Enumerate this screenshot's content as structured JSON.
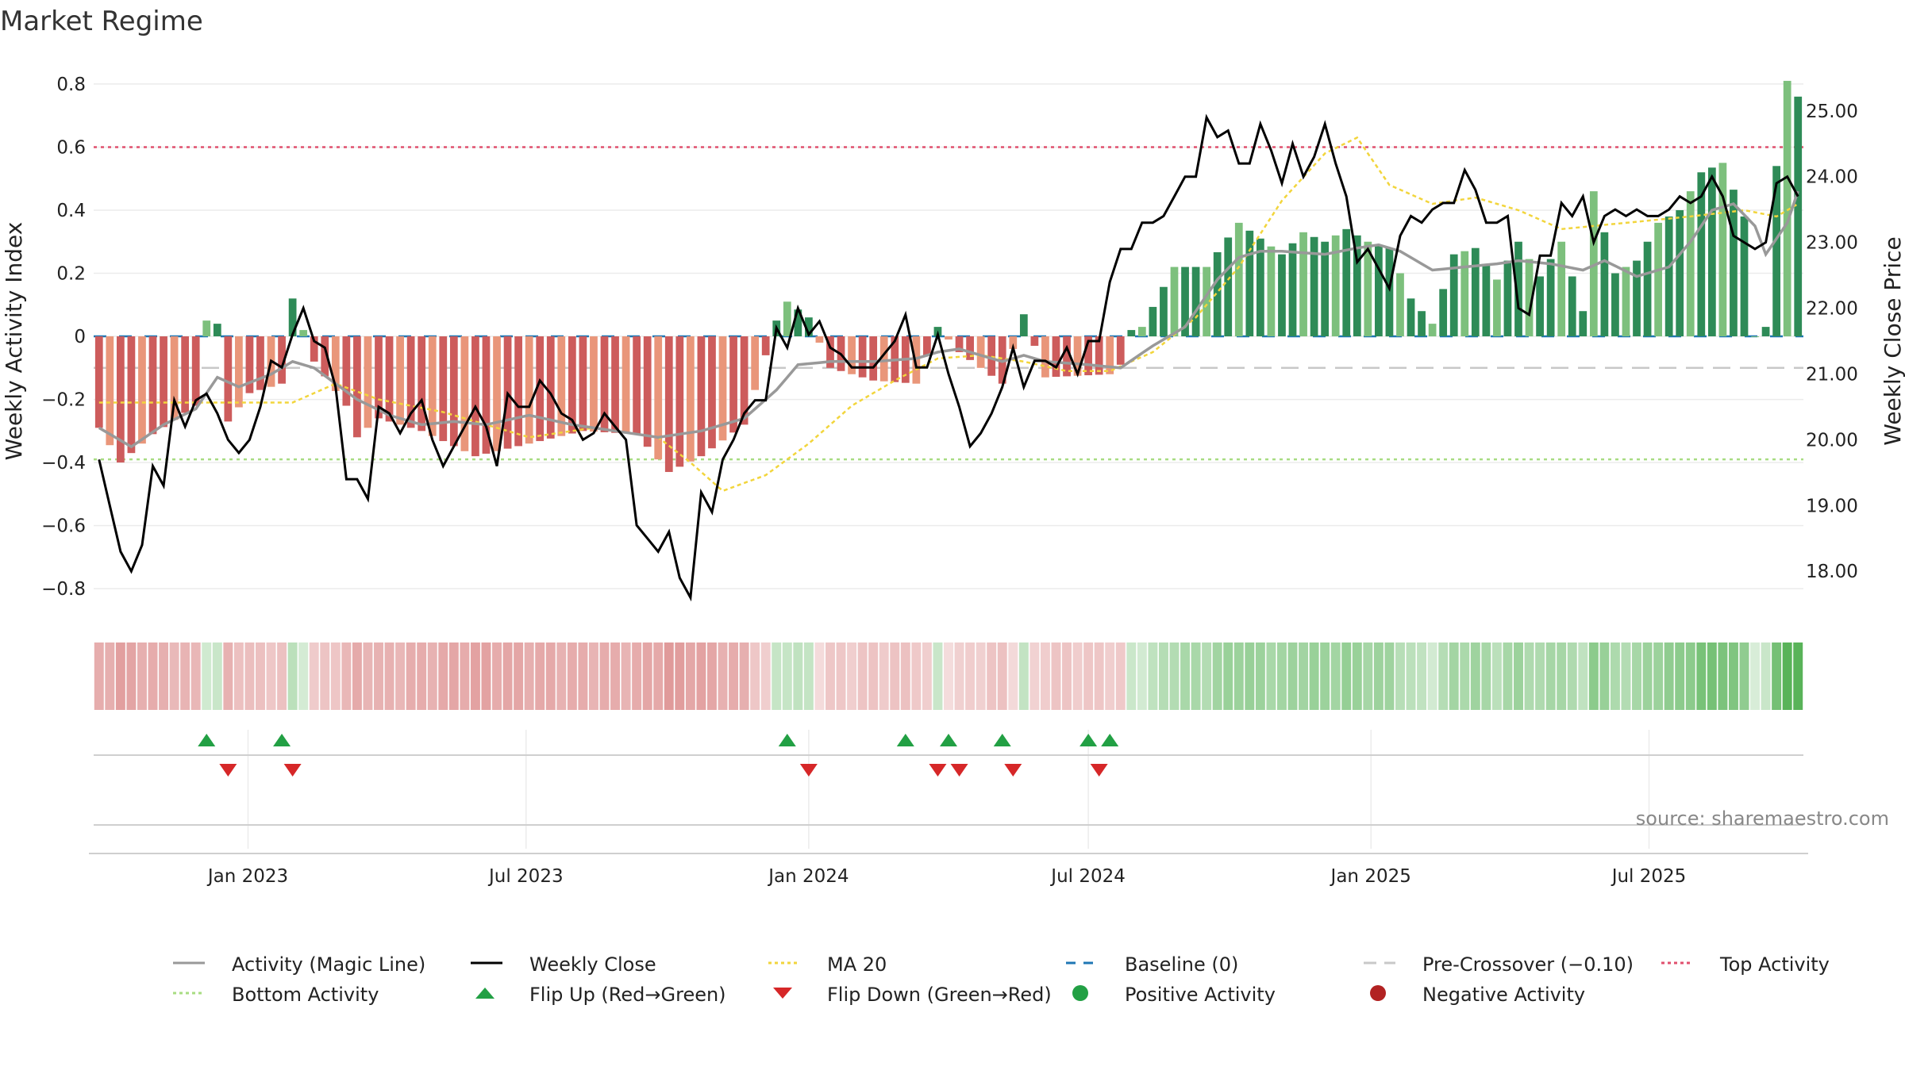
{
  "chart_data": {
    "type": "bar",
    "title": "Market Regime",
    "ylabel_left": "Weekly Activity Index",
    "ylabel_right": "Weekly Close Price",
    "source": "source: sharemaestro.com",
    "x_start_date": "2022-09-26",
    "weeks": 159,
    "date_tick_labels": [
      "Jan 2023",
      "Jul 2023",
      "Jan 2024",
      "Jul 2024",
      "Jan 2025",
      "Jul 2025"
    ],
    "date_tick_dates": [
      "2023-01-01",
      "2023-07-01",
      "2024-01-01",
      "2024-07-01",
      "2025-01-01",
      "2025-07-01"
    ],
    "ylim_left": [
      -0.87,
      0.84
    ],
    "yticks_left": [
      0.8,
      0.6,
      0.4,
      0.2,
      0,
      -0.2,
      -0.4,
      -0.6,
      -0.8
    ],
    "ytick_labels_left": [
      "0.8",
      "0.6",
      "0.4",
      "0.2",
      "0",
      "−0.2",
      "−0.4",
      "−0.6",
      "−0.8"
    ],
    "ylim_right": [
      17.4,
      25.6
    ],
    "yticks_right": [
      25,
      24,
      23,
      22,
      21,
      20,
      19,
      18
    ],
    "ytick_labels_right": [
      "25.00",
      "24.00",
      "23.00",
      "22.00",
      "21.00",
      "20.00",
      "19.00",
      "18.00"
    ],
    "reference_lines": {
      "top": 0.6,
      "bottom": -0.39,
      "pre_crossover": -0.1,
      "baseline": 0
    },
    "bar_anchor_points": [
      [
        0,
        -0.29
      ],
      [
        2,
        -0.4
      ],
      [
        5,
        -0.31
      ],
      [
        9,
        -0.22
      ],
      [
        10,
        0.05
      ],
      [
        11,
        0.04
      ],
      [
        12,
        -0.27
      ],
      [
        14,
        -0.18
      ],
      [
        17,
        -0.15
      ],
      [
        18,
        0.12
      ],
      [
        20,
        -0.08
      ],
      [
        23,
        -0.22
      ],
      [
        24,
        -0.32
      ],
      [
        26,
        -0.26
      ],
      [
        30,
        -0.3
      ],
      [
        35,
        -0.38
      ],
      [
        40,
        -0.34
      ],
      [
        45,
        -0.3
      ],
      [
        50,
        -0.31
      ],
      [
        53,
        -0.43
      ],
      [
        56,
        -0.38
      ],
      [
        60,
        -0.28
      ],
      [
        63,
        0.05
      ],
      [
        64,
        0.11
      ],
      [
        66,
        0.06
      ],
      [
        68,
        -0.1
      ],
      [
        72,
        -0.14
      ],
      [
        76,
        -0.15
      ],
      [
        78,
        0.03
      ],
      [
        80,
        -0.05
      ],
      [
        84,
        -0.15
      ],
      [
        86,
        0.07
      ],
      [
        88,
        -0.13
      ],
      [
        94,
        -0.12
      ],
      [
        95,
        -0.09
      ],
      [
        96,
        0.02
      ],
      [
        97,
        0.03
      ],
      [
        100,
        0.22
      ],
      [
        103,
        0.22
      ],
      [
        106,
        0.36
      ],
      [
        108,
        0.31
      ],
      [
        110,
        0.26
      ],
      [
        112,
        0.33
      ],
      [
        114,
        0.3
      ],
      [
        116,
        0.34
      ],
      [
        118,
        0.3
      ],
      [
        120,
        0.28
      ],
      [
        122,
        0.12
      ],
      [
        124,
        0.04
      ],
      [
        126,
        0.26
      ],
      [
        128,
        0.28
      ],
      [
        130,
        0.18
      ],
      [
        132,
        0.3
      ],
      [
        134,
        0.19
      ],
      [
        136,
        0.3
      ],
      [
        138,
        0.08
      ],
      [
        139,
        0.46
      ],
      [
        141,
        0.2
      ],
      [
        143,
        0.24
      ],
      [
        145,
        0.36
      ],
      [
        147,
        0.4
      ],
      [
        149,
        0.52
      ],
      [
        151,
        0.55
      ],
      [
        153,
        0.38
      ],
      [
        154,
        0.0
      ],
      [
        155,
        0.03
      ],
      [
        156,
        0.54
      ],
      [
        157,
        0.81
      ],
      [
        158,
        0.76
      ]
    ],
    "magic_line_anchor_points": [
      [
        0,
        -0.29
      ],
      [
        3,
        -0.35
      ],
      [
        6,
        -0.28
      ],
      [
        9,
        -0.23
      ],
      [
        11,
        -0.13
      ],
      [
        13,
        -0.16
      ],
      [
        16,
        -0.12
      ],
      [
        18,
        -0.08
      ],
      [
        20,
        -0.1
      ],
      [
        22,
        -0.15
      ],
      [
        24,
        -0.2
      ],
      [
        27,
        -0.25
      ],
      [
        30,
        -0.28
      ],
      [
        33,
        -0.27
      ],
      [
        36,
        -0.28
      ],
      [
        40,
        -0.25
      ],
      [
        44,
        -0.28
      ],
      [
        48,
        -0.3
      ],
      [
        52,
        -0.32
      ],
      [
        56,
        -0.3
      ],
      [
        60,
        -0.26
      ],
      [
        63,
        -0.17
      ],
      [
        65,
        -0.09
      ],
      [
        68,
        -0.08
      ],
      [
        72,
        -0.08
      ],
      [
        76,
        -0.07
      ],
      [
        78,
        -0.05
      ],
      [
        80,
        -0.04
      ],
      [
        84,
        -0.08
      ],
      [
        86,
        -0.06
      ],
      [
        88,
        -0.08
      ],
      [
        92,
        -0.09
      ],
      [
        95,
        -0.1
      ],
      [
        98,
        -0.03
      ],
      [
        101,
        0.03
      ],
      [
        104,
        0.18
      ],
      [
        106,
        0.25
      ],
      [
        108,
        0.27
      ],
      [
        110,
        0.27
      ],
      [
        114,
        0.26
      ],
      [
        117,
        0.28
      ],
      [
        119,
        0.29
      ],
      [
        121,
        0.27
      ],
      [
        124,
        0.21
      ],
      [
        127,
        0.22
      ],
      [
        130,
        0.23
      ],
      [
        132,
        0.24
      ],
      [
        135,
        0.23
      ],
      [
        138,
        0.21
      ],
      [
        140,
        0.24
      ],
      [
        143,
        0.19
      ],
      [
        146,
        0.22
      ],
      [
        148,
        0.3
      ],
      [
        150,
        0.4
      ],
      [
        152,
        0.42
      ],
      [
        154,
        0.35
      ],
      [
        155,
        0.26
      ],
      [
        157,
        0.36
      ],
      [
        158,
        0.46
      ]
    ],
    "weekly_close_anchor_points": [
      [
        0,
        19.7
      ],
      [
        2,
        18.3
      ],
      [
        3,
        18.0
      ],
      [
        4,
        18.4
      ],
      [
        5,
        19.6
      ],
      [
        6,
        19.3
      ],
      [
        7,
        20.6
      ],
      [
        8,
        20.2
      ],
      [
        9,
        20.6
      ],
      [
        10,
        20.7
      ],
      [
        11,
        20.4
      ],
      [
        12,
        20.0
      ],
      [
        13,
        19.8
      ],
      [
        14,
        20.0
      ],
      [
        15,
        20.5
      ],
      [
        16,
        21.2
      ],
      [
        17,
        21.1
      ],
      [
        18,
        21.6
      ],
      [
        19,
        22.0
      ],
      [
        20,
        21.5
      ],
      [
        21,
        21.4
      ],
      [
        22,
        20.8
      ],
      [
        23,
        19.4
      ],
      [
        24,
        19.4
      ],
      [
        25,
        19.1
      ],
      [
        26,
        20.5
      ],
      [
        27,
        20.4
      ],
      [
        28,
        20.1
      ],
      [
        29,
        20.4
      ],
      [
        30,
        20.6
      ],
      [
        31,
        20.0
      ],
      [
        32,
        19.6
      ],
      [
        33,
        19.9
      ],
      [
        34,
        20.2
      ],
      [
        35,
        20.5
      ],
      [
        36,
        20.2
      ],
      [
        37,
        19.6
      ],
      [
        38,
        20.7
      ],
      [
        39,
        20.5
      ],
      [
        40,
        20.5
      ],
      [
        41,
        20.9
      ],
      [
        42,
        20.7
      ],
      [
        43,
        20.4
      ],
      [
        44,
        20.3
      ],
      [
        45,
        20.0
      ],
      [
        46,
        20.1
      ],
      [
        47,
        20.4
      ],
      [
        48,
        20.2
      ],
      [
        49,
        20.0
      ],
      [
        50,
        18.7
      ],
      [
        51,
        18.5
      ],
      [
        52,
        18.3
      ],
      [
        53,
        18.6
      ],
      [
        54,
        17.9
      ],
      [
        55,
        17.6
      ],
      [
        56,
        19.2
      ],
      [
        57,
        18.9
      ],
      [
        58,
        19.7
      ],
      [
        59,
        20.0
      ],
      [
        60,
        20.4
      ],
      [
        61,
        20.6
      ],
      [
        62,
        20.6
      ],
      [
        63,
        21.7
      ],
      [
        64,
        21.4
      ],
      [
        65,
        22.0
      ],
      [
        66,
        21.6
      ],
      [
        67,
        21.8
      ],
      [
        68,
        21.4
      ],
      [
        69,
        21.3
      ],
      [
        70,
        21.1
      ],
      [
        71,
        21.1
      ],
      [
        72,
        21.1
      ],
      [
        73,
        21.3
      ],
      [
        74,
        21.5
      ],
      [
        75,
        21.9
      ],
      [
        76,
        21.1
      ],
      [
        77,
        21.1
      ],
      [
        78,
        21.6
      ],
      [
        79,
        21.0
      ],
      [
        80,
        20.5
      ],
      [
        81,
        19.9
      ],
      [
        82,
        20.1
      ],
      [
        83,
        20.4
      ],
      [
        84,
        20.8
      ],
      [
        85,
        21.4
      ],
      [
        86,
        20.8
      ],
      [
        87,
        21.2
      ],
      [
        88,
        21.2
      ],
      [
        89,
        21.1
      ],
      [
        90,
        21.4
      ],
      [
        91,
        21.0
      ],
      [
        92,
        21.5
      ],
      [
        93,
        21.5
      ],
      [
        94,
        22.4
      ],
      [
        95,
        22.9
      ],
      [
        96,
        22.9
      ],
      [
        97,
        23.3
      ],
      [
        98,
        23.3
      ],
      [
        99,
        23.4
      ],
      [
        100,
        23.7
      ],
      [
        101,
        24.0
      ],
      [
        102,
        24.0
      ],
      [
        103,
        24.9
      ],
      [
        104,
        24.6
      ],
      [
        105,
        24.7
      ],
      [
        106,
        24.2
      ],
      [
        107,
        24.2
      ],
      [
        108,
        24.8
      ],
      [
        109,
        24.4
      ],
      [
        110,
        23.9
      ],
      [
        111,
        24.5
      ],
      [
        112,
        24.0
      ],
      [
        113,
        24.3
      ],
      [
        114,
        24.8
      ],
      [
        115,
        24.2
      ],
      [
        116,
        23.7
      ],
      [
        117,
        22.7
      ],
      [
        118,
        22.9
      ],
      [
        119,
        22.6
      ],
      [
        120,
        22.3
      ],
      [
        121,
        23.1
      ],
      [
        122,
        23.4
      ],
      [
        123,
        23.3
      ],
      [
        124,
        23.5
      ],
      [
        125,
        23.6
      ],
      [
        126,
        23.6
      ],
      [
        127,
        24.1
      ],
      [
        128,
        23.8
      ],
      [
        129,
        23.3
      ],
      [
        130,
        23.3
      ],
      [
        131,
        23.4
      ],
      [
        132,
        22.0
      ],
      [
        133,
        21.9
      ],
      [
        134,
        22.8
      ],
      [
        135,
        22.8
      ],
      [
        136,
        23.6
      ],
      [
        137,
        23.4
      ],
      [
        138,
        23.7
      ],
      [
        139,
        23.0
      ],
      [
        140,
        23.4
      ],
      [
        141,
        23.5
      ],
      [
        142,
        23.4
      ],
      [
        143,
        23.5
      ],
      [
        144,
        23.4
      ],
      [
        145,
        23.4
      ],
      [
        146,
        23.5
      ],
      [
        147,
        23.7
      ],
      [
        148,
        23.6
      ],
      [
        149,
        23.7
      ],
      [
        150,
        24.0
      ],
      [
        151,
        23.7
      ],
      [
        152,
        23.1
      ],
      [
        153,
        23.0
      ],
      [
        154,
        22.9
      ],
      [
        155,
        23.0
      ],
      [
        156,
        23.9
      ],
      [
        157,
        24.0
      ],
      [
        158,
        23.7
      ]
    ],
    "ma20_anchor_points": [
      [
        0,
        -0.21
      ],
      [
        10,
        -0.21
      ],
      [
        18,
        -0.21
      ],
      [
        22,
        -0.15
      ],
      [
        26,
        -0.2
      ],
      [
        32,
        -0.24
      ],
      [
        40,
        -0.32
      ],
      [
        46,
        -0.29
      ],
      [
        52,
        -0.32
      ],
      [
        55,
        -0.4
      ],
      [
        58,
        -0.49
      ],
      [
        62,
        -0.44
      ],
      [
        66,
        -0.34
      ],
      [
        70,
        -0.22
      ],
      [
        74,
        -0.14
      ],
      [
        78,
        -0.07
      ],
      [
        82,
        -0.06
      ],
      [
        86,
        -0.08
      ],
      [
        90,
        -0.11
      ],
      [
        94,
        -0.11
      ],
      [
        98,
        -0.05
      ],
      [
        102,
        0.06
      ],
      [
        106,
        0.22
      ],
      [
        110,
        0.43
      ],
      [
        114,
        0.58
      ],
      [
        117,
        0.63
      ],
      [
        120,
        0.48
      ],
      [
        124,
        0.42
      ],
      [
        128,
        0.44
      ],
      [
        132,
        0.4
      ],
      [
        136,
        0.34
      ],
      [
        142,
        0.36
      ],
      [
        148,
        0.38
      ],
      [
        153,
        0.4
      ],
      [
        156,
        0.38
      ],
      [
        158,
        0.42
      ]
    ],
    "regime_strip_alpha_range": [
      0.2,
      0.85
    ],
    "flip_up_weeks": [
      10,
      17,
      64,
      75,
      79,
      84,
      92,
      94
    ],
    "flip_down_weeks": [
      12,
      18,
      66,
      78,
      80,
      85,
      93
    ],
    "series": [
      {
        "name": "Activity (Magic Line)",
        "color": "#999999"
      },
      {
        "name": "Weekly Close",
        "color": "#000000"
      },
      {
        "name": "MA 20",
        "color": "#f2d53c"
      },
      {
        "name": "Baseline (0)",
        "color": "#1f77b4"
      },
      {
        "name": "Pre-Crossover (−0.10)",
        "color": "#c8c8c8"
      },
      {
        "name": "Top Activity",
        "color": "#e0506e"
      },
      {
        "name": "Bottom Activity",
        "color": "#a8dc82"
      },
      {
        "name": "Flip Up (Red→Green)",
        "color": "#22a044"
      },
      {
        "name": "Flip Down (Green→Red)",
        "color": "#d62728"
      },
      {
        "name": "Positive Activity",
        "color": "#22a044"
      },
      {
        "name": "Negative Activity",
        "color": "#b22222"
      }
    ],
    "colors": {
      "strong_green": "#2e8b57",
      "light_green": "#7dc07d",
      "strong_red": "#cd5c5c",
      "light_red": "#e9967a",
      "strip_green": "#3ca63c",
      "strip_red": "#cd5c5c"
    },
    "grid": true,
    "legend_position": "bottom"
  }
}
